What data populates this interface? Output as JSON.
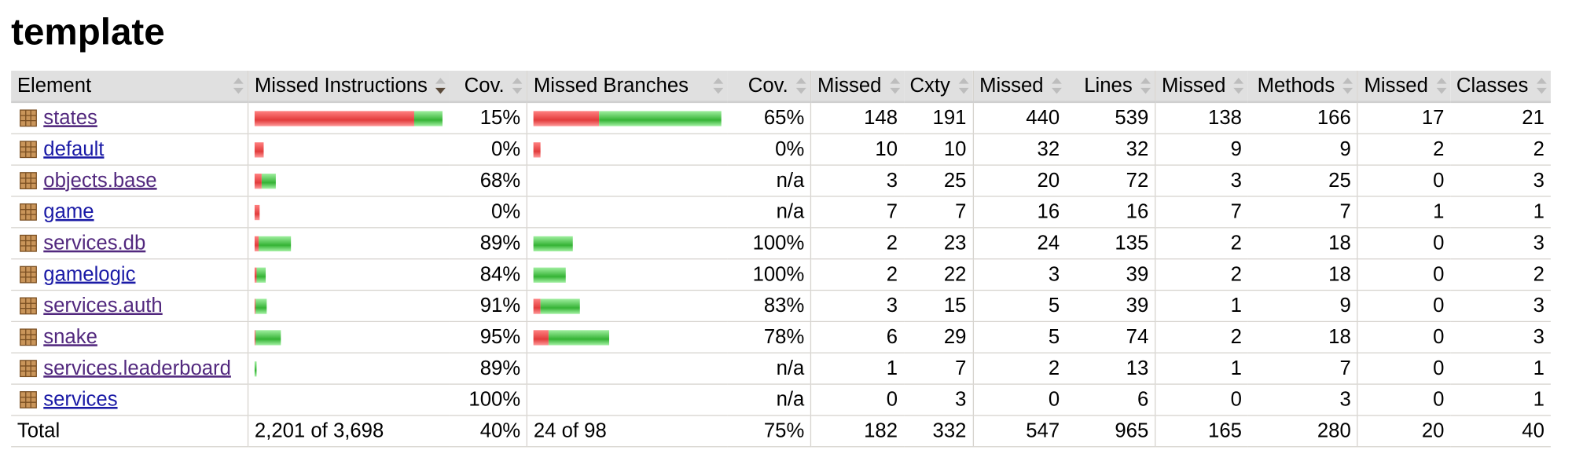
{
  "title": "template",
  "headers": [
    "Element",
    "Missed Instructions",
    "Cov.",
    "Missed Branches",
    "Cov.",
    "Missed",
    "Cxty",
    "Missed",
    "Lines",
    "Missed",
    "Methods",
    "Missed",
    "Classes"
  ],
  "rows": [
    {
      "name": "states",
      "visited": true,
      "instr_missed_frac": 0.85,
      "instr_total_frac": 1.0,
      "instr_cov": "15%",
      "br_missed_frac": 0.35,
      "br_total_frac": 1.0,
      "br_cov": "65%",
      "cx_missed": "148",
      "cx": "191",
      "ln_missed": "440",
      "ln": "539",
      "mt_missed": "138",
      "mt": "166",
      "cl_missed": "17",
      "cl": "21"
    },
    {
      "name": "default",
      "visited": false,
      "instr_missed_frac": 0.05,
      "instr_total_frac": 0.05,
      "instr_cov": "0%",
      "br_missed_frac": 0.04,
      "br_total_frac": 0.04,
      "br_cov": "0%",
      "cx_missed": "10",
      "cx": "10",
      "ln_missed": "32",
      "ln": "32",
      "mt_missed": "9",
      "mt": "9",
      "cl_missed": "2",
      "cl": "2"
    },
    {
      "name": "objects.base",
      "visited": true,
      "instr_missed_frac": 0.035,
      "instr_total_frac": 0.11,
      "instr_cov": "68%",
      "br_missed_frac": 0,
      "br_total_frac": 0,
      "br_cov": "n/a",
      "cx_missed": "3",
      "cx": "25",
      "ln_missed": "20",
      "ln": "72",
      "mt_missed": "3",
      "mt": "25",
      "cl_missed": "0",
      "cl": "3"
    },
    {
      "name": "game",
      "visited": false,
      "instr_missed_frac": 0.025,
      "instr_total_frac": 0.025,
      "instr_cov": "0%",
      "br_missed_frac": 0,
      "br_total_frac": 0,
      "br_cov": "n/a",
      "cx_missed": "7",
      "cx": "7",
      "ln_missed": "16",
      "ln": "16",
      "mt_missed": "7",
      "mt": "7",
      "cl_missed": "1",
      "cl": "1"
    },
    {
      "name": "services.db",
      "visited": true,
      "instr_missed_frac": 0.02,
      "instr_total_frac": 0.19,
      "instr_cov": "89%",
      "br_missed_frac": 0,
      "br_total_frac": 0.21,
      "br_cov": "100%",
      "cx_missed": "2",
      "cx": "23",
      "ln_missed": "24",
      "ln": "135",
      "mt_missed": "2",
      "mt": "18",
      "cl_missed": "0",
      "cl": "3"
    },
    {
      "name": "gamelogic",
      "visited": false,
      "instr_missed_frac": 0.01,
      "instr_total_frac": 0.06,
      "instr_cov": "84%",
      "br_missed_frac": 0,
      "br_total_frac": 0.17,
      "br_cov": "100%",
      "cx_missed": "2",
      "cx": "22",
      "ln_missed": "3",
      "ln": "39",
      "mt_missed": "2",
      "mt": "18",
      "cl_missed": "0",
      "cl": "2"
    },
    {
      "name": "services.auth",
      "visited": true,
      "instr_missed_frac": 0.006,
      "instr_total_frac": 0.065,
      "instr_cov": "91%",
      "br_missed_frac": 0.04,
      "br_total_frac": 0.25,
      "br_cov": "83%",
      "cx_missed": "3",
      "cx": "15",
      "ln_missed": "5",
      "ln": "39",
      "mt_missed": "1",
      "mt": "9",
      "cl_missed": "0",
      "cl": "3"
    },
    {
      "name": "snake",
      "visited": true,
      "instr_missed_frac": 0.007,
      "instr_total_frac": 0.14,
      "instr_cov": "95%",
      "br_missed_frac": 0.08,
      "br_total_frac": 0.4,
      "br_cov": "78%",
      "cx_missed": "6",
      "cx": "29",
      "ln_missed": "5",
      "ln": "74",
      "mt_missed": "2",
      "mt": "18",
      "cl_missed": "0",
      "cl": "3"
    },
    {
      "name": "services.leaderboard",
      "visited": true,
      "instr_missed_frac": 0.002,
      "instr_total_frac": 0.012,
      "instr_cov": "89%",
      "br_missed_frac": 0,
      "br_total_frac": 0,
      "br_cov": "n/a",
      "cx_missed": "1",
      "cx": "7",
      "ln_missed": "2",
      "ln": "13",
      "mt_missed": "1",
      "mt": "7",
      "cl_missed": "0",
      "cl": "1"
    },
    {
      "name": "services",
      "visited": false,
      "instr_missed_frac": 0,
      "instr_total_frac": 0,
      "instr_cov": "100%",
      "br_missed_frac": 0,
      "br_total_frac": 0,
      "br_cov": "n/a",
      "cx_missed": "0",
      "cx": "3",
      "ln_missed": "0",
      "ln": "6",
      "mt_missed": "0",
      "mt": "3",
      "cl_missed": "0",
      "cl": "1"
    }
  ],
  "total": {
    "label": "Total",
    "instr": "2,201 of 3,698",
    "instr_cov": "40%",
    "br": "24 of 98",
    "br_cov": "75%",
    "cx_missed": "182",
    "cx": "332",
    "ln_missed": "547",
    "ln": "965",
    "mt_missed": "165",
    "mt": "280",
    "cl_missed": "20",
    "cl": "40"
  },
  "colors": {
    "missed": "#e23c3c",
    "covered": "#35b335",
    "link": "#1a1aa6",
    "visited_link": "#52287e",
    "header_bg": "#e0e0e0"
  },
  "icons": {
    "package": "package-icon",
    "sort": "sort-arrows-icon"
  }
}
